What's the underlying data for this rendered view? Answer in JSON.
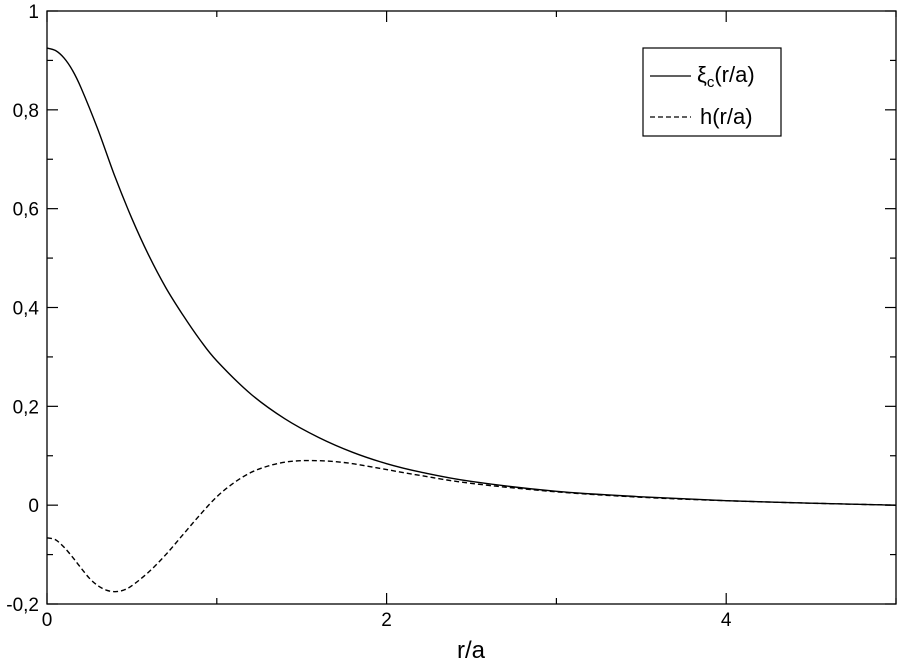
{
  "chart_data": {
    "type": "line",
    "xlabel": "r/a",
    "ylabel": "",
    "xlim": [
      0,
      5
    ],
    "ylim": [
      -0.2,
      1
    ],
    "xticks": [
      {
        "value": 0,
        "label": "0"
      },
      {
        "value": 2,
        "label": "2"
      },
      {
        "value": 4,
        "label": "4"
      }
    ],
    "yticks": [
      {
        "value": -0.2,
        "label": "-0,2"
      },
      {
        "value": 0,
        "label": "0"
      },
      {
        "value": 0.2,
        "label": "0,2"
      },
      {
        "value": 0.4,
        "label": "0,4"
      },
      {
        "value": 0.6,
        "label": "0,6"
      },
      {
        "value": 0.8,
        "label": "0,8"
      },
      {
        "value": 1,
        "label": "1"
      }
    ],
    "legend_position": "top-right",
    "grid": false,
    "series": [
      {
        "name": "ξc(r/a)",
        "legend_main": "ξ",
        "legend_sub": "c",
        "legend_tail": "(r/a)",
        "style": "solid",
        "color": "#000000",
        "x": [
          0,
          0.05,
          0.1,
          0.15,
          0.2,
          0.3,
          0.4,
          0.5,
          0.6,
          0.7,
          0.8,
          0.9,
          1.0,
          1.2,
          1.4,
          1.6,
          1.8,
          2.0,
          2.2,
          2.5,
          3.0,
          3.5,
          4.0,
          4.5,
          5.0
        ],
        "y": [
          0.925,
          0.92,
          0.905,
          0.88,
          0.845,
          0.76,
          0.665,
          0.58,
          0.505,
          0.44,
          0.385,
          0.335,
          0.292,
          0.225,
          0.175,
          0.137,
          0.107,
          0.084,
          0.067,
          0.048,
          0.028,
          0.017,
          0.009,
          0.004,
          0.0
        ]
      },
      {
        "name": "h(r/a)",
        "style": "dashed",
        "color": "#000000",
        "x": [
          0,
          0.05,
          0.1,
          0.15,
          0.2,
          0.25,
          0.3,
          0.35,
          0.4,
          0.45,
          0.5,
          0.6,
          0.7,
          0.8,
          0.9,
          1.0,
          1.1,
          1.2,
          1.3,
          1.4,
          1.5,
          1.6,
          1.7,
          1.8,
          1.9,
          2.0,
          2.2,
          2.5,
          3.0,
          3.5,
          4.0,
          4.5,
          5.0
        ],
        "y": [
          -0.066,
          -0.07,
          -0.085,
          -0.105,
          -0.127,
          -0.148,
          -0.163,
          -0.172,
          -0.175,
          -0.172,
          -0.163,
          -0.135,
          -0.1,
          -0.06,
          -0.02,
          0.017,
          0.045,
          0.066,
          0.079,
          0.087,
          0.09,
          0.09,
          0.088,
          0.084,
          0.078,
          0.072,
          0.06,
          0.044,
          0.027,
          0.016,
          0.009,
          0.004,
          0.0
        ]
      }
    ]
  }
}
